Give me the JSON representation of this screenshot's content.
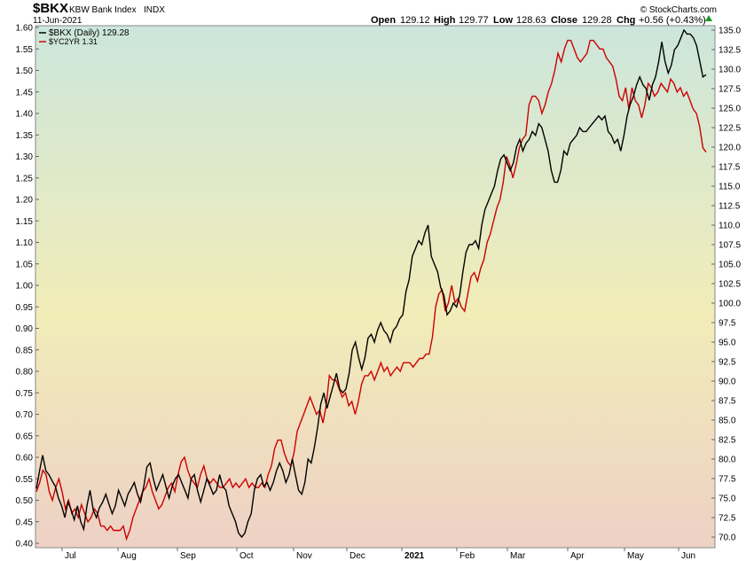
{
  "header": {
    "symbol": "$BKX",
    "name": "KBW Bank Index",
    "exchange": "INDX",
    "date": "11-Jun-2021",
    "open_label": "Open",
    "open_value": "129.12",
    "high_label": "High",
    "high_value": "129.77",
    "low_label": "Low",
    "low_value": "128.63",
    "close_label": "Close",
    "close_value": "129.28",
    "chg_label": "Chg",
    "chg_value": "+0.56 (+0.43%)",
    "arrow_icon": "up-arrow-icon",
    "watermark": "© StockCharts.com"
  },
  "chart_data": {
    "type": "line",
    "gradient_colors": [
      "#cce6dc",
      "#f1ecb8",
      "#eed1c5"
    ],
    "x_ticks": [
      "Jul",
      "Aug",
      "Sep",
      "Oct",
      "Nov",
      "Dec",
      "2021",
      "Feb",
      "Mar",
      "Apr",
      "May",
      "Jun"
    ],
    "left_axis": {
      "ticks": [
        "0.40",
        "0.45",
        "0.50",
        "0.55",
        "0.60",
        "0.65",
        "0.70",
        "0.75",
        "0.80",
        "0.85",
        "0.90",
        "0.95",
        "1.00",
        "1.05",
        "1.10",
        "1.15",
        "1.20",
        "1.25",
        "1.30",
        "1.35",
        "1.40",
        "1.45",
        "1.50",
        "1.55",
        "1.60"
      ],
      "range": [
        0.4,
        1.6
      ]
    },
    "right_axis": {
      "ticks": [
        "70.0",
        "72.5",
        "75.0",
        "77.5",
        "80.0",
        "82.5",
        "85.0",
        "87.5",
        "90.0",
        "92.5",
        "95.0",
        "97.5",
        "100.0",
        "102.5",
        "105.0",
        "107.5",
        "110.0",
        "112.5",
        "115.0",
        "117.5",
        "120.0",
        "122.5",
        "125.0",
        "127.5",
        "130.0",
        "132.5",
        "135.0"
      ],
      "range": [
        70.0,
        135.0
      ]
    },
    "grid": false,
    "legend_position": "top-left",
    "series": [
      {
        "name": "$BKX (Daily) 129.28",
        "axis": "right",
        "color": "#000000",
        "values": [
          76.2,
          78.5,
          80.5,
          78.5,
          78.0,
          77.2,
          76.5,
          75.0,
          74.0,
          72.5,
          74.5,
          73.5,
          72.2,
          74.0,
          72.0,
          71.0,
          74.0,
          76.0,
          73.5,
          72.5,
          73.8,
          74.5,
          75.5,
          74.2,
          73.0,
          74.0,
          76.0,
          75.0,
          74.0,
          75.5,
          76.2,
          77.0,
          75.5,
          74.5,
          76.5,
          79.0,
          79.5,
          77.5,
          76.0,
          77.0,
          78.0,
          76.5,
          75.0,
          76.5,
          77.5,
          78.0,
          77.0,
          76.0,
          75.0,
          77.5,
          78.0,
          76.0,
          74.5,
          76.0,
          77.5,
          76.5,
          75.5,
          76.0,
          78.0,
          76.5,
          76.0,
          74.0,
          73.0,
          72.0,
          70.5,
          70.0,
          70.5,
          72.0,
          73.0,
          76.0,
          77.5,
          78.0,
          76.5,
          77.0,
          76.0,
          77.0,
          78.5,
          79.5,
          78.5,
          77.0,
          78.0,
          80.0,
          78.0,
          76.0,
          75.5,
          77.0,
          80.0,
          79.5,
          81.5,
          84.0,
          87.0,
          88.5,
          86.5,
          88.0,
          89.5,
          91.0,
          89.0,
          88.5,
          89.0,
          91.0,
          94.0,
          95.0,
          93.0,
          91.5,
          93.0,
          95.5,
          96.0,
          95.0,
          96.5,
          97.5,
          96.5,
          96.0,
          95.0,
          96.5,
          97.0,
          98.0,
          98.5,
          101.5,
          103.0,
          106.0,
          107.0,
          108.0,
          107.5,
          109.0,
          110.0,
          106.0,
          105.0,
          104.0,
          102.0,
          101.0,
          98.5,
          99.0,
          100.0,
          99.5,
          101.0,
          104.0,
          106.5,
          107.5,
          107.5,
          108.0,
          107.0,
          110.0,
          112.0,
          113.0,
          114.0,
          115.0,
          117.0,
          118.5,
          119.0,
          118.0,
          117.0,
          118.0,
          120.0,
          121.0,
          119.5,
          120.5,
          121.0,
          122.0,
          121.5,
          123.0,
          122.5,
          121.0,
          119.5,
          117.0,
          115.5,
          115.5,
          117.0,
          119.5,
          119.0,
          120.5,
          121.0,
          121.5,
          122.5,
          122.0,
          122.0,
          122.5,
          123.0,
          123.5,
          124.0,
          123.5,
          124.0,
          122.0,
          121.5,
          120.5,
          121.0,
          119.5,
          121.5,
          124.0,
          125.5,
          126.5,
          128.0,
          129.0,
          128.0,
          127.5,
          126.0,
          128.0,
          129.0,
          131.0,
          133.5,
          131.0,
          129.5,
          130.5,
          132.5,
          133.0,
          134.0,
          135.0,
          134.5,
          134.5,
          134.0,
          133.0,
          131.0,
          129.0,
          129.28
        ]
      },
      {
        "name": "$YC2YR 1.31",
        "axis": "left",
        "color": "#cc0000",
        "values": [
          0.52,
          0.54,
          0.57,
          0.56,
          0.52,
          0.5,
          0.53,
          0.55,
          0.52,
          0.48,
          0.5,
          0.47,
          0.48,
          0.46,
          0.49,
          0.47,
          0.45,
          0.46,
          0.48,
          0.47,
          0.44,
          0.44,
          0.43,
          0.44,
          0.43,
          0.43,
          0.43,
          0.44,
          0.41,
          0.43,
          0.46,
          0.48,
          0.5,
          0.52,
          0.53,
          0.55,
          0.52,
          0.5,
          0.48,
          0.49,
          0.51,
          0.53,
          0.54,
          0.52,
          0.56,
          0.59,
          0.6,
          0.57,
          0.55,
          0.54,
          0.53,
          0.56,
          0.58,
          0.55,
          0.54,
          0.55,
          0.54,
          0.53,
          0.53,
          0.54,
          0.55,
          0.53,
          0.54,
          0.53,
          0.54,
          0.55,
          0.53,
          0.54,
          0.53,
          0.53,
          0.54,
          0.53,
          0.56,
          0.58,
          0.62,
          0.64,
          0.64,
          0.61,
          0.59,
          0.58,
          0.61,
          0.66,
          0.68,
          0.7,
          0.72,
          0.74,
          0.72,
          0.7,
          0.71,
          0.68,
          0.72,
          0.79,
          0.78,
          0.78,
          0.76,
          0.74,
          0.75,
          0.72,
          0.73,
          0.7,
          0.73,
          0.77,
          0.79,
          0.79,
          0.8,
          0.78,
          0.8,
          0.82,
          0.8,
          0.81,
          0.79,
          0.8,
          0.81,
          0.8,
          0.82,
          0.82,
          0.82,
          0.81,
          0.82,
          0.83,
          0.83,
          0.84,
          0.84,
          0.88,
          0.95,
          0.98,
          0.99,
          0.94,
          0.96,
          1.0,
          0.96,
          0.97,
          0.95,
          0.94,
          0.98,
          1.02,
          1.03,
          1.01,
          1.04,
          1.06,
          1.1,
          1.12,
          1.15,
          1.18,
          1.2,
          1.24,
          1.3,
          1.28,
          1.25,
          1.28,
          1.32,
          1.34,
          1.35,
          1.42,
          1.44,
          1.44,
          1.43,
          1.4,
          1.42,
          1.45,
          1.47,
          1.5,
          1.54,
          1.52,
          1.55,
          1.57,
          1.57,
          1.55,
          1.53,
          1.52,
          1.53,
          1.54,
          1.57,
          1.57,
          1.56,
          1.55,
          1.55,
          1.53,
          1.52,
          1.51,
          1.48,
          1.44,
          1.43,
          1.46,
          1.41,
          1.46,
          1.43,
          1.42,
          1.39,
          1.42,
          1.47,
          1.46,
          1.44,
          1.45,
          1.47,
          1.46,
          1.45,
          1.48,
          1.47,
          1.45,
          1.46,
          1.44,
          1.45,
          1.43,
          1.41,
          1.4,
          1.37,
          1.32,
          1.31
        ]
      }
    ]
  }
}
